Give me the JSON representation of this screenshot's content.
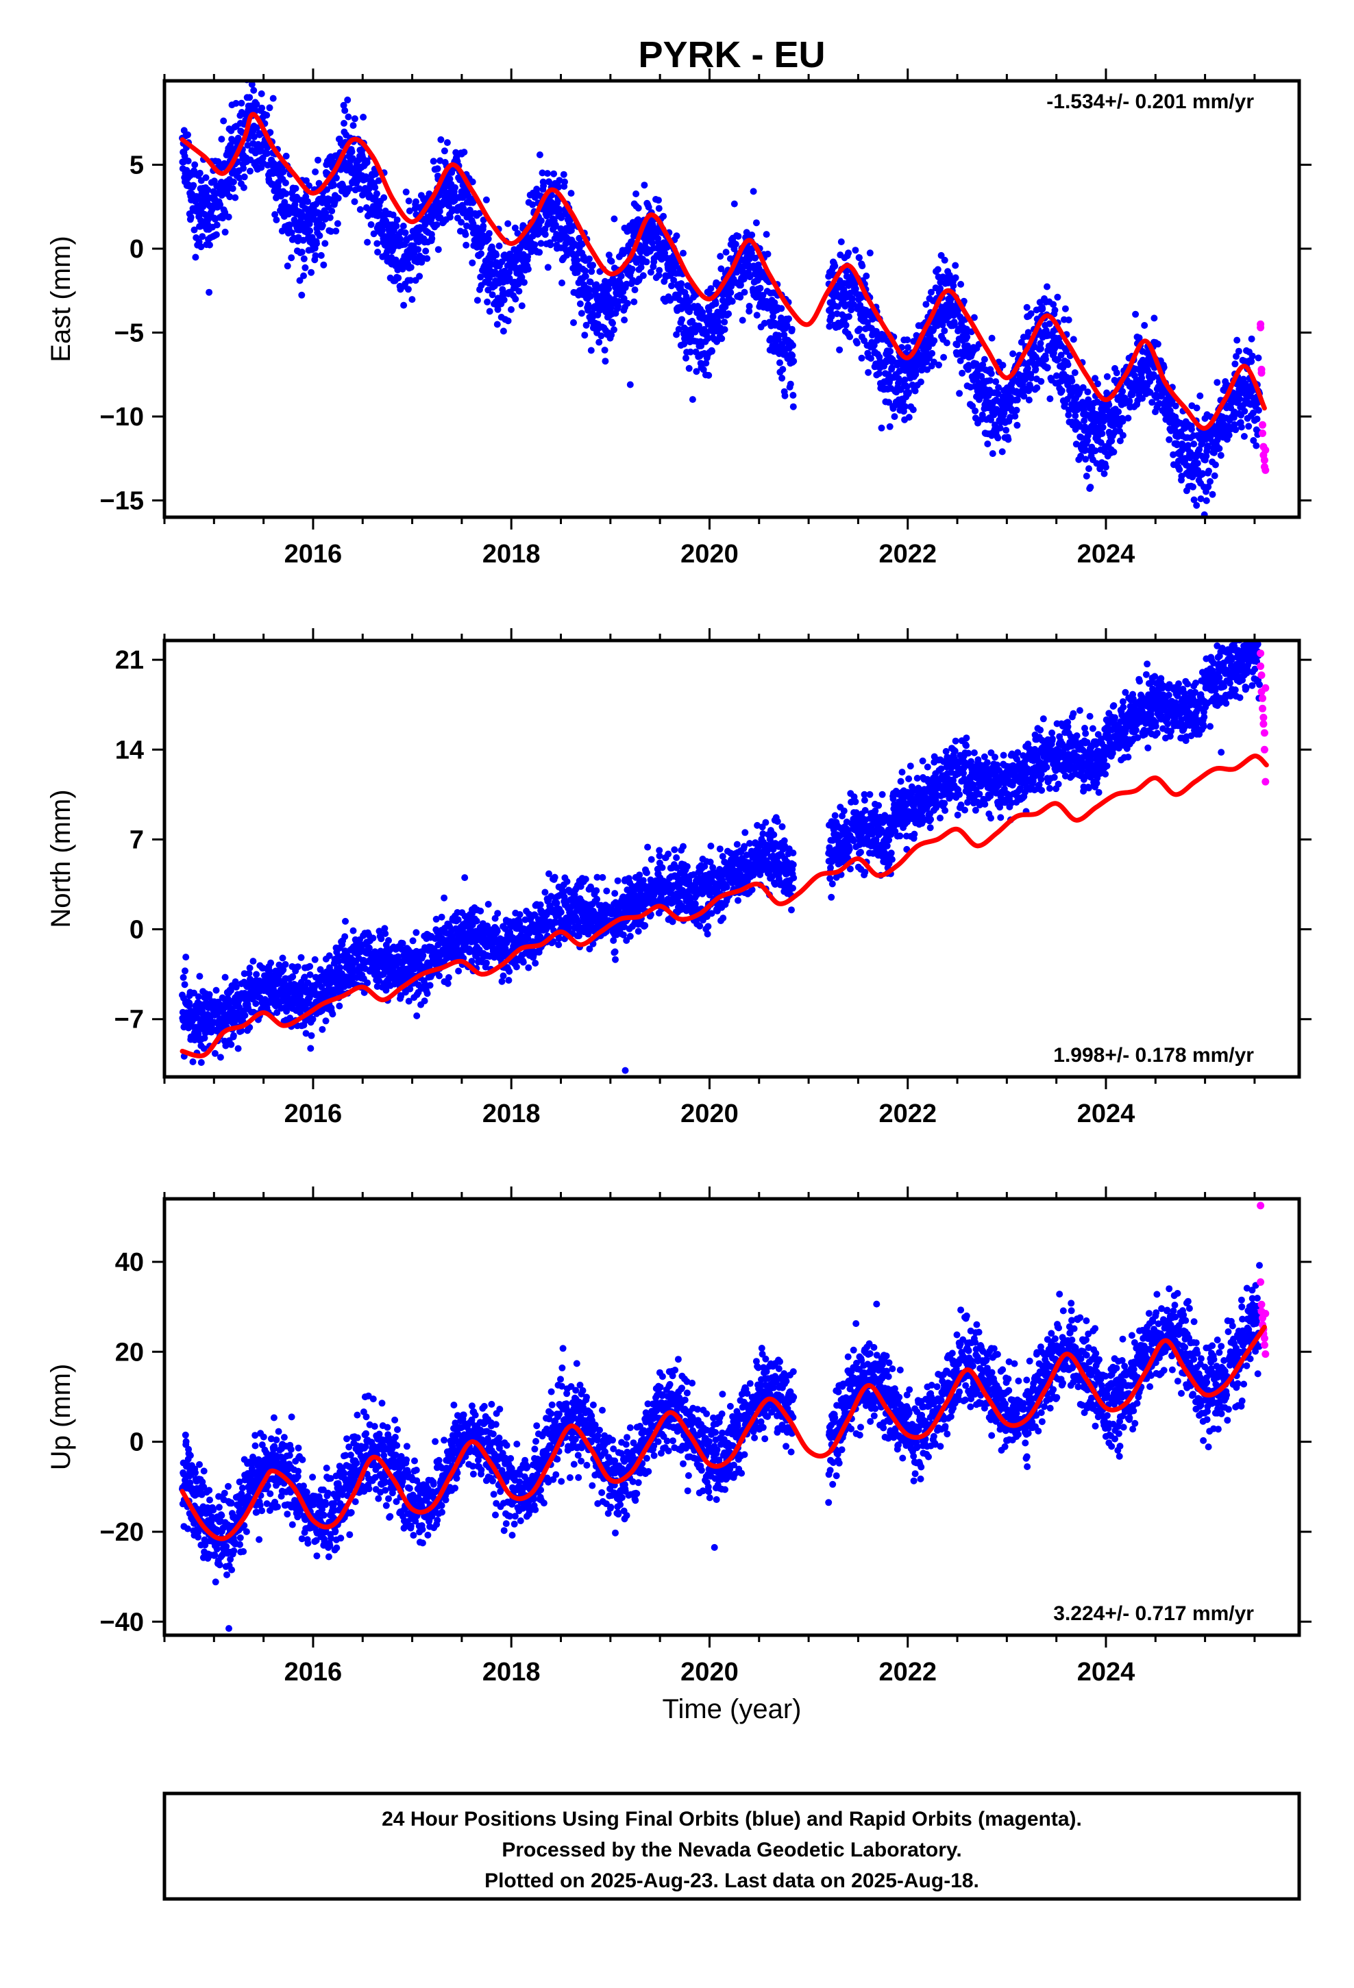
{
  "title": "PYRK - EU",
  "x_axis_label": "Time (year)",
  "footer": {
    "line1": "24 Hour Positions Using Final Orbits (blue) and Rapid Orbits (magenta).",
    "line2": "Processed by the Nevada Geodetic Laboratory.",
    "line3": "Plotted on 2025-Aug-23. Last data on 2025-Aug-18."
  },
  "colors": {
    "final_orbits": "#0000ff",
    "rapid_orbits": "#ff00ff",
    "model_fit": "#ff0000",
    "frame": "#000000"
  },
  "chart_data": [
    {
      "type": "scatter",
      "component": "East",
      "ylabel": "East (mm)",
      "rate_label": "-1.534+/- 0.201 mm/yr",
      "rate_placement": "top-right",
      "xlim": [
        2014.5,
        2025.95
      ],
      "ylim": [
        -16.0,
        10.0
      ],
      "xticks": [
        2016,
        2018,
        2020,
        2022,
        2024
      ],
      "xtick_labels": [
        "2016",
        "2018",
        "2020",
        "2022",
        "2024"
      ],
      "yticks": [
        5,
        0,
        -5,
        -10,
        -15
      ],
      "ytick_labels": [
        "5",
        "0",
        "−5",
        "−10",
        "−15"
      ],
      "grid": false,
      "series": [
        {
          "kind": "points",
          "color": "final_orbits",
          "x_range": [
            2014.68,
            2025.55
          ],
          "trend": -1.534,
          "offset_at_start": 5.5,
          "annual_amp": 2.5,
          "annual_peak": 0.4,
          "scatter": 1.3,
          "steps": [],
          "outliers": [
            [
              2014.95,
              -2.6
            ],
            [
              2019.2,
              -8.1
            ]
          ]
        },
        {
          "kind": "points",
          "color": "rapid_orbits",
          "x": [
            2025.56,
            2025.56,
            2025.57,
            2025.57,
            2025.58,
            2025.58,
            2025.59,
            2025.59,
            2025.6,
            2025.6,
            2025.61,
            2025.61
          ],
          "y": [
            -4.5,
            -4.7,
            -7.2,
            -7.4,
            -10.5,
            -11.0,
            -11.8,
            -12.3,
            -12.6,
            -13.0,
            -12.0,
            -13.2
          ]
        },
        {
          "kind": "line",
          "color": "model_fit",
          "x": [
            2014.68,
            2014.9,
            2015.1,
            2015.3,
            2015.4,
            2015.6,
            2015.8,
            2016.0,
            2016.2,
            2016.4,
            2016.6,
            2016.8,
            2017.0,
            2017.2,
            2017.4,
            2017.6,
            2017.8,
            2018.0,
            2018.2,
            2018.4,
            2018.6,
            2018.8,
            2019.0,
            2019.2,
            2019.4,
            2019.6,
            2019.8,
            2020.0,
            2020.2,
            2020.4,
            2020.6,
            2020.8,
            2021.0,
            2021.2,
            2021.4,
            2021.6,
            2021.8,
            2022.0,
            2022.2,
            2022.4,
            2022.6,
            2022.8,
            2023.0,
            2023.2,
            2023.4,
            2023.6,
            2023.8,
            2024.0,
            2024.2,
            2024.4,
            2024.6,
            2024.8,
            2025.0,
            2025.2,
            2025.4,
            2025.6
          ],
          "y": [
            6.5,
            5.5,
            4.5,
            6.5,
            8.0,
            6.0,
            4.5,
            3.3,
            4.5,
            6.5,
            5.5,
            3.0,
            1.6,
            3.0,
            5.0,
            3.5,
            1.5,
            0.3,
            1.5,
            3.5,
            2.2,
            0.0,
            -1.5,
            -0.5,
            2.0,
            0.5,
            -1.8,
            -3.0,
            -1.5,
            0.5,
            -1.5,
            -3.5,
            -4.5,
            -2.5,
            -1.0,
            -3.0,
            -5.0,
            -6.5,
            -4.5,
            -2.5,
            -4.0,
            -6.0,
            -7.7,
            -6.0,
            -4.0,
            -5.5,
            -7.5,
            -9.0,
            -7.5,
            -5.5,
            -8.0,
            -9.5,
            -10.7,
            -9.0,
            -7.0,
            -9.5
          ]
        }
      ]
    },
    {
      "type": "scatter",
      "component": "North",
      "ylabel": "North (mm)",
      "rate_label": "1.998+/- 0.178 mm/yr",
      "rate_placement": "bottom-right",
      "xlim": [
        2014.5,
        2025.95
      ],
      "ylim": [
        -11.5,
        22.5
      ],
      "xticks": [
        2016,
        2018,
        2020,
        2022,
        2024
      ],
      "xtick_labels": [
        "2016",
        "2018",
        "2020",
        "2022",
        "2024"
      ],
      "yticks": [
        21,
        14,
        7,
        0,
        -7
      ],
      "ytick_labels": [
        "21",
        "14",
        "7",
        "0",
        "−7"
      ],
      "grid": false,
      "series": [
        {
          "kind": "points",
          "color": "final_orbits",
          "x_range": [
            2014.68,
            2025.55
          ],
          "trend": 2.0,
          "offset_at_start": -7.0,
          "annual_amp": 0.8,
          "annual_peak": 0.5,
          "scatter": 1.2,
          "steps": [
            [
              2021.85,
              2.5
            ],
            [
              2024.0,
              1.5
            ],
            [
              2025.0,
              2.0
            ]
          ],
          "outliers": [
            [
              2019.15,
              -11.0
            ]
          ]
        },
        {
          "kind": "points",
          "color": "rapid_orbits",
          "x": [
            2025.56,
            2025.56,
            2025.57,
            2025.57,
            2025.58,
            2025.58,
            2025.59,
            2025.59,
            2025.6,
            2025.6,
            2025.61,
            2025.61
          ],
          "y": [
            21.5,
            20.5,
            19.8,
            18.5,
            18.0,
            17.2,
            16.5,
            16.0,
            15.3,
            14.0,
            11.5,
            18.8
          ]
        },
        {
          "kind": "line",
          "color": "model_fit",
          "x": [
            2014.68,
            2014.9,
            2015.1,
            2015.3,
            2015.5,
            2015.7,
            2015.9,
            2016.1,
            2016.3,
            2016.5,
            2016.7,
            2016.9,
            2017.1,
            2017.3,
            2017.5,
            2017.7,
            2017.9,
            2018.1,
            2018.3,
            2018.5,
            2018.7,
            2018.9,
            2019.1,
            2019.3,
            2019.5,
            2019.7,
            2019.9,
            2020.1,
            2020.3,
            2020.5,
            2020.7,
            2020.9,
            2021.1,
            2021.3,
            2021.5,
            2021.7,
            2021.9,
            2022.1,
            2022.3,
            2022.5,
            2022.7,
            2022.9,
            2023.1,
            2023.3,
            2023.5,
            2023.7,
            2023.9,
            2024.1,
            2024.3,
            2024.5,
            2024.7,
            2024.9,
            2025.1,
            2025.3,
            2025.5,
            2025.62
          ],
          "y": [
            -9.5,
            -9.8,
            -8.0,
            -7.5,
            -6.5,
            -7.5,
            -6.8,
            -5.8,
            -5.2,
            -4.5,
            -5.5,
            -4.5,
            -3.5,
            -3.0,
            -2.5,
            -3.5,
            -2.8,
            -1.5,
            -1.2,
            -0.2,
            -1.2,
            -0.2,
            0.8,
            1.0,
            1.8,
            0.8,
            1.2,
            2.5,
            3.0,
            3.5,
            2.0,
            2.8,
            4.2,
            4.5,
            5.5,
            4.2,
            5.0,
            6.5,
            7.0,
            7.8,
            6.5,
            7.5,
            8.8,
            9.0,
            9.8,
            8.5,
            9.5,
            10.5,
            10.8,
            11.8,
            10.5,
            11.5,
            12.5,
            12.5,
            13.5,
            12.8
          ]
        }
      ]
    },
    {
      "type": "scatter",
      "component": "Up",
      "ylabel": "Up (mm)",
      "rate_label": "3.224+/- 0.717 mm/yr",
      "rate_placement": "bottom-right",
      "xlim": [
        2014.5,
        2025.95
      ],
      "ylim": [
        -43.0,
        54.0
      ],
      "xticks": [
        2016,
        2018,
        2020,
        2022,
        2024
      ],
      "xtick_labels": [
        "2016",
        "2018",
        "2020",
        "2022",
        "2024"
      ],
      "yticks": [
        40,
        20,
        0,
        -20,
        -40
      ],
      "ytick_labels": [
        "40",
        "20",
        "0",
        "−20",
        "−40"
      ],
      "grid": false,
      "series": [
        {
          "kind": "points",
          "color": "final_orbits",
          "x_range": [
            2014.68,
            2025.55
          ],
          "trend": 3.224,
          "offset_at_start": -15.0,
          "annual_amp": 7.0,
          "annual_peak": 0.6,
          "scatter": 4.5,
          "steps": [],
          "outliers": [
            [
              2015.15,
              -41.5
            ],
            [
              2020.05,
              -23.5
            ]
          ]
        },
        {
          "kind": "points",
          "color": "rapid_orbits",
          "x": [
            2025.56,
            2025.56,
            2025.57,
            2025.57,
            2025.58,
            2025.58,
            2025.59,
            2025.59,
            2025.6,
            2025.6,
            2025.61,
            2025.61
          ],
          "y": [
            52.5,
            35.5,
            30.5,
            29.0,
            27.5,
            26.0,
            25.0,
            24.0,
            23.0,
            21.5,
            19.5,
            28.5
          ]
        },
        {
          "kind": "line",
          "color": "model_fit",
          "x": [
            2014.68,
            2014.9,
            2015.1,
            2015.3,
            2015.5,
            2015.6,
            2015.8,
            2016.0,
            2016.2,
            2016.4,
            2016.6,
            2016.8,
            2017.0,
            2017.2,
            2017.4,
            2017.6,
            2017.8,
            2018.0,
            2018.2,
            2018.4,
            2018.6,
            2018.8,
            2019.0,
            2019.2,
            2019.4,
            2019.6,
            2019.8,
            2020.0,
            2020.2,
            2020.4,
            2020.6,
            2020.8,
            2021.0,
            2021.2,
            2021.4,
            2021.6,
            2021.8,
            2022.0,
            2022.2,
            2022.4,
            2022.6,
            2022.8,
            2023.0,
            2023.2,
            2023.4,
            2023.6,
            2023.8,
            2024.0,
            2024.2,
            2024.4,
            2024.6,
            2024.8,
            2025.0,
            2025.2,
            2025.4,
            2025.6
          ],
          "y": [
            -11.0,
            -19.0,
            -21.5,
            -17.0,
            -9.0,
            -6.5,
            -10.0,
            -17.5,
            -18.5,
            -12.0,
            -3.5,
            -8.0,
            -15.0,
            -14.5,
            -7.0,
            0.0,
            -5.0,
            -12.0,
            -11.5,
            -4.0,
            3.5,
            -1.5,
            -8.5,
            -7.0,
            0.0,
            6.5,
            1.5,
            -5.0,
            -4.0,
            3.5,
            9.5,
            5.0,
            -2.0,
            -2.5,
            5.0,
            12.5,
            7.0,
            1.5,
            2.0,
            9.0,
            16.0,
            10.0,
            4.0,
            5.0,
            12.0,
            19.5,
            14.0,
            7.5,
            8.5,
            15.5,
            22.5,
            16.0,
            10.5,
            12.5,
            19.0,
            25.5
          ]
        }
      ]
    }
  ]
}
